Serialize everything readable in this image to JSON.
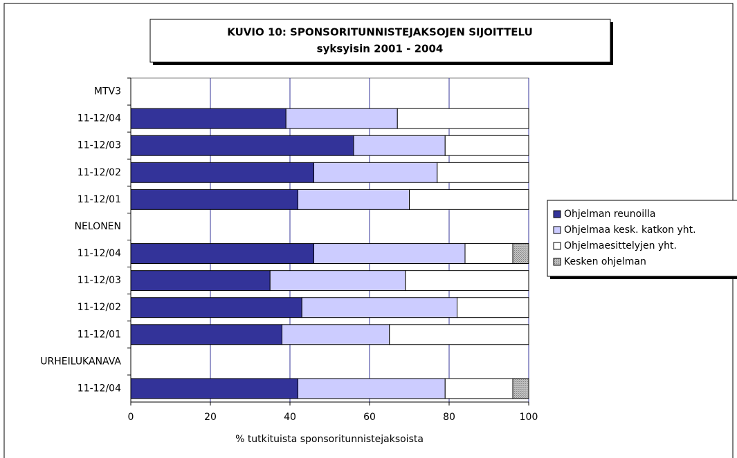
{
  "chart_data": {
    "type": "stacked_barh",
    "title": "KUVIO 10: SPONSORITUNNISTEJAKSOJEN SIJOITTELU",
    "subtitle": "syksyisin 2001 - 2004",
    "x_label": "% tutkituista sponsoritunnistejaksoista",
    "categories": [
      "MTV3",
      "11-12/04",
      "11-12/03",
      "11-12/02",
      "11-12/01",
      "NELONEN",
      "11-12/04",
      "11-12/03",
      "11-12/02",
      "11-12/01",
      "URHEILUKANAVA",
      "11-12/04"
    ],
    "series": [
      {
        "name": "Ohjelman reunoilla",
        "color": "#333399",
        "values": [
          null,
          39,
          56,
          46,
          42,
          null,
          46,
          35,
          43,
          38,
          null,
          42
        ]
      },
      {
        "name": "Ohjelmaa kesk. katkon yht.",
        "color": "#ccccff",
        "values": [
          null,
          28,
          23,
          31,
          28,
          null,
          38,
          34,
          39,
          27,
          null,
          37
        ]
      },
      {
        "name": "Ohjelmaesittelyjen yht.",
        "color": "#ffffff",
        "values": [
          null,
          33,
          21,
          23,
          30,
          null,
          12,
          31,
          18,
          35,
          null,
          17
        ]
      },
      {
        "name": "Kesken ohjelman",
        "color": "#c0c0c0",
        "values": [
          null,
          null,
          null,
          null,
          null,
          null,
          4,
          null,
          null,
          null,
          null,
          4
        ]
      }
    ],
    "xlim": [
      0,
      100
    ],
    "xticks": [
      0,
      20,
      40,
      60,
      80,
      100
    ],
    "grid": true
  }
}
